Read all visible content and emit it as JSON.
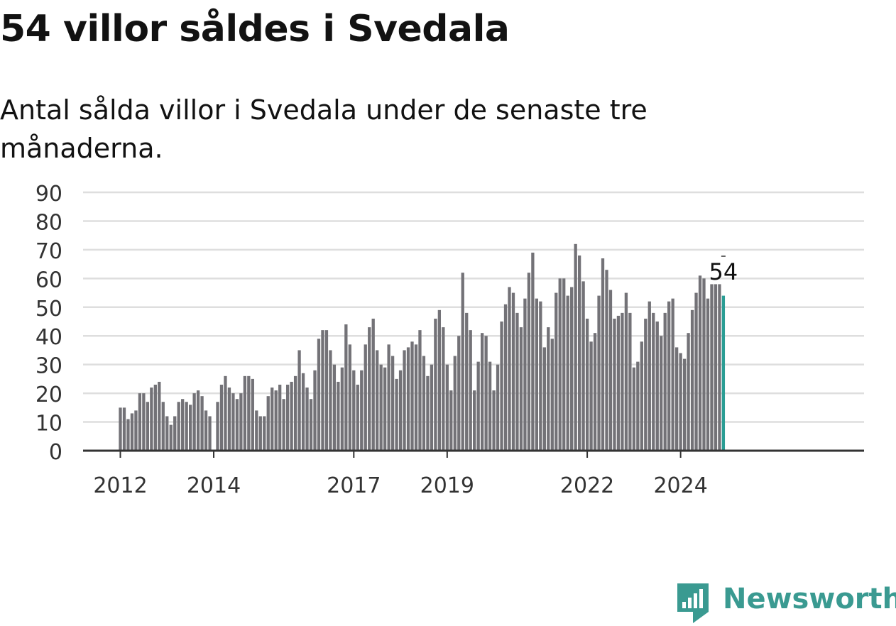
{
  "title": "54 villor såldes i Svedala",
  "subtitle": "Antal sålda villor i Svedala under de senaste tre månaderna.",
  "brand": {
    "name": "Newsworthy",
    "color": "#3a9a91",
    "icon": "newsworthy-logo-icon"
  },
  "colors": {
    "bar": "#737277",
    "highlight": "#2a9d94",
    "grid": "#dedede",
    "axis": "#333333"
  },
  "chart_data": {
    "type": "bar",
    "title": "54 villor såldes i Svedala",
    "xlabel": "",
    "ylabel": "",
    "ylim": [
      0,
      90
    ],
    "yticks": [
      0,
      10,
      20,
      30,
      40,
      50,
      60,
      70,
      80,
      90
    ],
    "xticks": [
      "2012",
      "2014",
      "2017",
      "2019",
      "2022",
      "2024"
    ],
    "grid": true,
    "x_start": "2012-01",
    "x_end": "2024-12",
    "highlight_label": "54",
    "values": [
      15,
      15,
      11,
      13,
      14,
      20,
      20,
      17,
      22,
      23,
      24,
      17,
      12,
      9,
      12,
      17,
      18,
      17,
      16,
      20,
      21,
      19,
      14,
      12,
      null,
      17,
      23,
      26,
      22,
      20,
      18,
      20,
      26,
      26,
      25,
      14,
      12,
      12,
      19,
      22,
      21,
      23,
      18,
      23,
      24,
      26,
      35,
      27,
      22,
      18,
      28,
      39,
      42,
      42,
      35,
      30,
      24,
      29,
      44,
      37,
      28,
      23,
      28,
      37,
      43,
      46,
      35,
      30,
      29,
      37,
      33,
      25,
      28,
      35,
      36,
      38,
      37,
      42,
      33,
      26,
      30,
      46,
      49,
      43,
      30,
      21,
      33,
      40,
      62,
      48,
      42,
      21,
      31,
      41,
      40,
      31,
      21,
      30,
      45,
      51,
      57,
      55,
      48,
      43,
      53,
      62,
      69,
      53,
      52,
      36,
      43,
      39,
      55,
      60,
      60,
      54,
      57,
      72,
      68,
      59,
      46,
      38,
      41,
      54,
      67,
      63,
      56,
      46,
      47,
      48,
      55,
      48,
      29,
      31,
      38,
      46,
      52,
      48,
      45,
      40,
      48,
      52,
      53,
      36,
      34,
      32,
      41,
      49,
      55,
      61,
      60,
      53,
      58,
      58,
      58,
      54
    ]
  }
}
